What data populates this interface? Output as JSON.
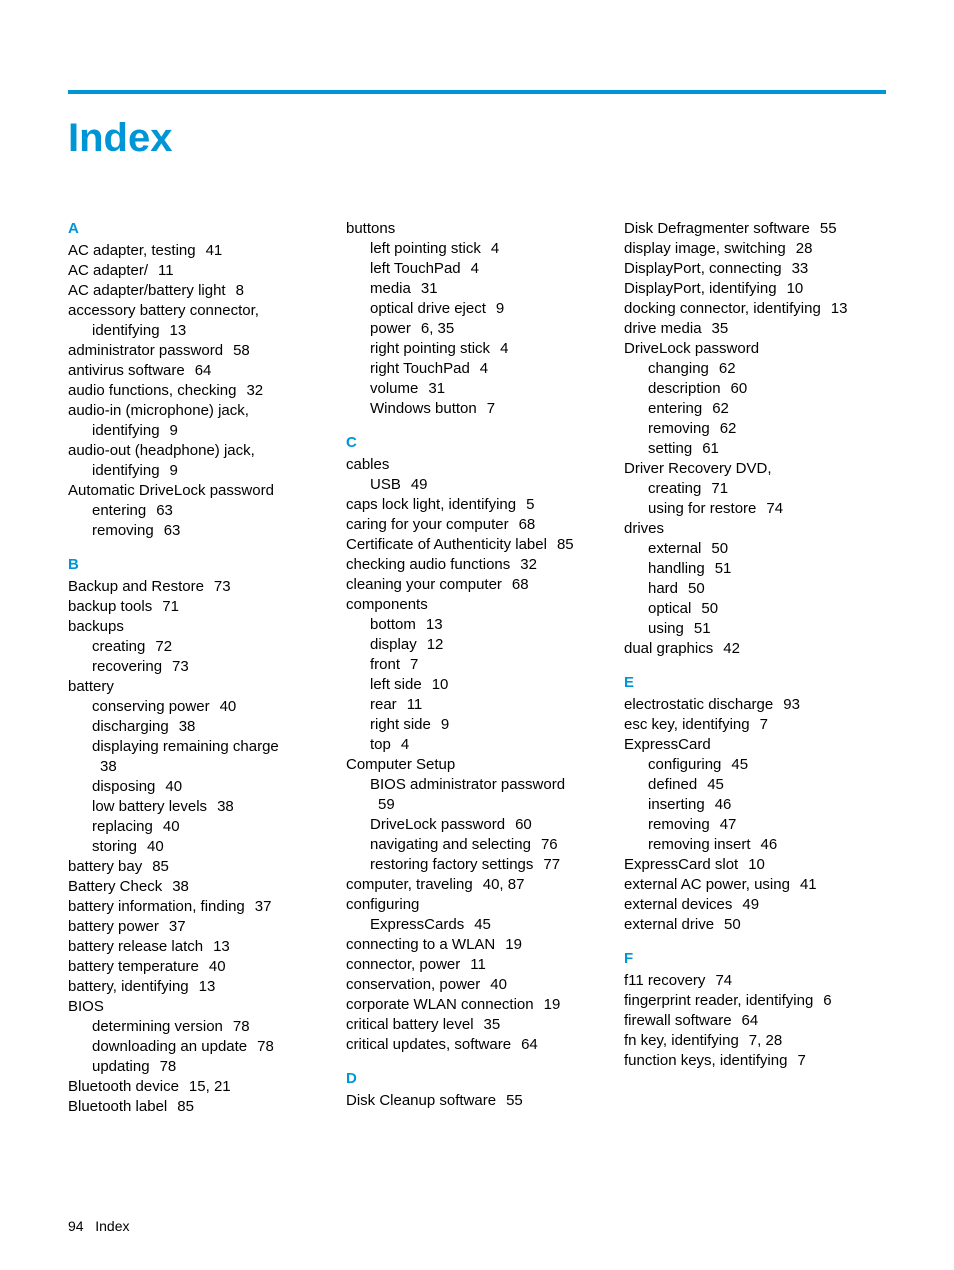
{
  "title": "Index",
  "footer_pagenum": "94",
  "footer_label": "Index",
  "accent_color": "#0096d6",
  "columns": 3,
  "entries": [
    [
      {
        "type": "letter",
        "text": "A",
        "first": true
      },
      {
        "type": "item",
        "text": "AC adapter, testing",
        "page": "41"
      },
      {
        "type": "item",
        "text": "AC adapter/",
        "page": "11"
      },
      {
        "type": "item",
        "text": "AC adapter/battery light",
        "page": "8"
      },
      {
        "type": "item",
        "text": "accessory battery connector,"
      },
      {
        "type": "item",
        "indent": 1,
        "text": "identifying",
        "page": "13",
        "tight": true
      },
      {
        "type": "item",
        "text": "administrator password",
        "page": "58"
      },
      {
        "type": "item",
        "text": "antivirus software",
        "page": "64"
      },
      {
        "type": "item",
        "text": "audio functions, checking",
        "page": "32"
      },
      {
        "type": "item",
        "text": "audio-in (microphone) jack,"
      },
      {
        "type": "item",
        "indent": 1,
        "text": "identifying",
        "page": "9",
        "tight": true
      },
      {
        "type": "item",
        "text": "audio-out (headphone) jack,"
      },
      {
        "type": "item",
        "indent": 1,
        "text": "identifying",
        "page": "9",
        "tight": true
      },
      {
        "type": "item",
        "text": "Automatic DriveLock password"
      },
      {
        "type": "item",
        "indent": 1,
        "text": "entering",
        "page": "63"
      },
      {
        "type": "item",
        "indent": 1,
        "text": "removing",
        "page": "63"
      },
      {
        "type": "letter",
        "text": "B"
      },
      {
        "type": "item",
        "text": "Backup and Restore",
        "page": "73"
      },
      {
        "type": "item",
        "text": "backup tools",
        "page": "71"
      },
      {
        "type": "item",
        "text": "backups"
      },
      {
        "type": "item",
        "indent": 1,
        "text": "creating",
        "page": "72"
      },
      {
        "type": "item",
        "indent": 1,
        "text": "recovering",
        "page": "73"
      },
      {
        "type": "item",
        "text": "battery"
      },
      {
        "type": "item",
        "indent": 1,
        "text": "conserving power",
        "page": "40"
      },
      {
        "type": "item",
        "indent": 1,
        "text": "discharging",
        "page": "38"
      },
      {
        "type": "item",
        "indent": 1,
        "text": "displaying remaining charge"
      },
      {
        "type": "item",
        "indent": 2,
        "text": "38",
        "tight": true
      },
      {
        "type": "item",
        "indent": 1,
        "text": "disposing",
        "page": "40"
      },
      {
        "type": "item",
        "indent": 1,
        "text": "low battery levels",
        "page": "38"
      },
      {
        "type": "item",
        "indent": 1,
        "text": "replacing",
        "page": "40"
      },
      {
        "type": "item",
        "indent": 1,
        "text": "storing",
        "page": "40"
      },
      {
        "type": "item",
        "text": "battery bay",
        "page": "85"
      },
      {
        "type": "item",
        "text": "Battery Check",
        "page": "38"
      },
      {
        "type": "item",
        "text": "battery information, finding",
        "page": "37"
      },
      {
        "type": "item",
        "text": "battery power",
        "page": "37"
      },
      {
        "type": "item",
        "text": "battery release latch",
        "page": "13"
      },
      {
        "type": "item",
        "text": "battery temperature",
        "page": "40"
      },
      {
        "type": "item",
        "text": "battery, identifying",
        "page": "13"
      },
      {
        "type": "item",
        "text": "BIOS"
      },
      {
        "type": "item",
        "indent": 1,
        "text": "determining version",
        "page": "78"
      },
      {
        "type": "item",
        "indent": 1,
        "text": "downloading an update",
        "page": "78"
      },
      {
        "type": "item",
        "indent": 1,
        "text": "updating",
        "page": "78"
      },
      {
        "type": "item",
        "text": "Bluetooth device",
        "page": "15, 21"
      },
      {
        "type": "item",
        "text": "Bluetooth label",
        "page": "85"
      }
    ],
    [
      {
        "type": "item",
        "text": "buttons"
      },
      {
        "type": "item",
        "indent": 1,
        "text": "left pointing stick",
        "page": "4"
      },
      {
        "type": "item",
        "indent": 1,
        "text": "left TouchPad",
        "page": "4"
      },
      {
        "type": "item",
        "indent": 1,
        "text": "media",
        "page": "31"
      },
      {
        "type": "item",
        "indent": 1,
        "text": "optical drive eject",
        "page": "9"
      },
      {
        "type": "item",
        "indent": 1,
        "text": "power",
        "page": "6, 35"
      },
      {
        "type": "item",
        "indent": 1,
        "text": "right pointing stick",
        "page": "4"
      },
      {
        "type": "item",
        "indent": 1,
        "text": "right TouchPad",
        "page": "4"
      },
      {
        "type": "item",
        "indent": 1,
        "text": "volume",
        "page": "31"
      },
      {
        "type": "item",
        "indent": 1,
        "text": "Windows button",
        "page": "7"
      },
      {
        "type": "letter",
        "text": "C"
      },
      {
        "type": "item",
        "text": "cables"
      },
      {
        "type": "item",
        "indent": 1,
        "text": "USB",
        "page": "49"
      },
      {
        "type": "item",
        "text": "caps lock light, identifying",
        "page": "5"
      },
      {
        "type": "item",
        "text": "caring for your computer",
        "page": "68"
      },
      {
        "type": "item",
        "text": "Certificate of Authenticity label",
        "page": "85"
      },
      {
        "type": "item",
        "text": "checking audio functions",
        "page": "32"
      },
      {
        "type": "item",
        "text": "cleaning your computer",
        "page": "68"
      },
      {
        "type": "item",
        "text": "components"
      },
      {
        "type": "item",
        "indent": 1,
        "text": "bottom",
        "page": "13"
      },
      {
        "type": "item",
        "indent": 1,
        "text": "display",
        "page": "12"
      },
      {
        "type": "item",
        "indent": 1,
        "text": "front",
        "page": "7"
      },
      {
        "type": "item",
        "indent": 1,
        "text": "left side",
        "page": "10"
      },
      {
        "type": "item",
        "indent": 1,
        "text": "rear",
        "page": "11"
      },
      {
        "type": "item",
        "indent": 1,
        "text": "right side",
        "page": "9"
      },
      {
        "type": "item",
        "indent": 1,
        "text": "top",
        "page": "4"
      },
      {
        "type": "item",
        "text": "Computer Setup"
      },
      {
        "type": "item",
        "indent": 1,
        "text": "BIOS administrator password"
      },
      {
        "type": "item",
        "indent": 2,
        "text": "59",
        "tight": true
      },
      {
        "type": "item",
        "indent": 1,
        "text": "DriveLock password",
        "page": "60"
      },
      {
        "type": "item",
        "indent": 1,
        "text": "navigating and selecting",
        "page": "76"
      },
      {
        "type": "item",
        "indent": 1,
        "text": "restoring factory settings",
        "page": "77"
      },
      {
        "type": "item",
        "text": "computer, traveling",
        "page": "40, 87"
      },
      {
        "type": "item",
        "text": "configuring"
      },
      {
        "type": "item",
        "indent": 1,
        "text": "ExpressCards",
        "page": "45"
      },
      {
        "type": "item",
        "text": "connecting to a WLAN",
        "page": "19"
      },
      {
        "type": "item",
        "text": "connector, power",
        "page": "11"
      },
      {
        "type": "item",
        "text": "conservation, power",
        "page": "40"
      },
      {
        "type": "item",
        "text": "corporate WLAN connection",
        "page": "19"
      },
      {
        "type": "item",
        "text": "critical battery level",
        "page": "35"
      },
      {
        "type": "item",
        "text": "critical updates, software",
        "page": "64"
      },
      {
        "type": "letter",
        "text": "D"
      },
      {
        "type": "item",
        "text": "Disk Cleanup software",
        "page": "55"
      }
    ],
    [
      {
        "type": "item",
        "text": "Disk Defragmenter software",
        "page": "55"
      },
      {
        "type": "item",
        "text": "display image, switching",
        "page": "28"
      },
      {
        "type": "item",
        "text": "DisplayPort, connecting",
        "page": "33"
      },
      {
        "type": "item",
        "text": "DisplayPort, identifying",
        "page": "10"
      },
      {
        "type": "item",
        "text": "docking connector, identifying",
        "page": "13"
      },
      {
        "type": "item",
        "text": "drive media",
        "page": "35"
      },
      {
        "type": "item",
        "text": "DriveLock password"
      },
      {
        "type": "item",
        "indent": 1,
        "text": "changing",
        "page": "62"
      },
      {
        "type": "item",
        "indent": 1,
        "text": "description",
        "page": "60"
      },
      {
        "type": "item",
        "indent": 1,
        "text": "entering",
        "page": "62"
      },
      {
        "type": "item",
        "indent": 1,
        "text": "removing",
        "page": "62"
      },
      {
        "type": "item",
        "indent": 1,
        "text": "setting",
        "page": "61"
      },
      {
        "type": "item",
        "text": "Driver Recovery DVD,"
      },
      {
        "type": "item",
        "indent": 1,
        "text": "creating",
        "page": "71"
      },
      {
        "type": "item",
        "indent": 1,
        "text": "using for restore",
        "page": "74"
      },
      {
        "type": "item",
        "text": "drives"
      },
      {
        "type": "item",
        "indent": 1,
        "text": "external",
        "page": "50"
      },
      {
        "type": "item",
        "indent": 1,
        "text": "handling",
        "page": "51"
      },
      {
        "type": "item",
        "indent": 1,
        "text": "hard",
        "page": "50"
      },
      {
        "type": "item",
        "indent": 1,
        "text": "optical",
        "page": "50"
      },
      {
        "type": "item",
        "indent": 1,
        "text": "using",
        "page": "51"
      },
      {
        "type": "item",
        "text": "dual graphics",
        "page": "42"
      },
      {
        "type": "letter",
        "text": "E"
      },
      {
        "type": "item",
        "text": "electrostatic discharge",
        "page": "93"
      },
      {
        "type": "item",
        "text": "esc key, identifying",
        "page": "7"
      },
      {
        "type": "item",
        "text": "ExpressCard"
      },
      {
        "type": "item",
        "indent": 1,
        "text": "configuring",
        "page": "45"
      },
      {
        "type": "item",
        "indent": 1,
        "text": "defined",
        "page": "45"
      },
      {
        "type": "item",
        "indent": 1,
        "text": "inserting",
        "page": "46"
      },
      {
        "type": "item",
        "indent": 1,
        "text": "removing",
        "page": "47"
      },
      {
        "type": "item",
        "indent": 1,
        "text": "removing insert",
        "page": "46"
      },
      {
        "type": "item",
        "text": "ExpressCard slot",
        "page": "10"
      },
      {
        "type": "item",
        "text": "external AC power, using",
        "page": "41"
      },
      {
        "type": "item",
        "text": "external devices",
        "page": "49"
      },
      {
        "type": "item",
        "text": "external drive",
        "page": "50"
      },
      {
        "type": "letter",
        "text": "F"
      },
      {
        "type": "item",
        "text": "f11 recovery",
        "page": "74"
      },
      {
        "type": "item",
        "text": "fingerprint reader, identifying",
        "page": "6"
      },
      {
        "type": "item",
        "text": "firewall software",
        "page": "64"
      },
      {
        "type": "item",
        "text": "fn key, identifying",
        "page": "7, 28"
      },
      {
        "type": "item",
        "text": "function keys, identifying",
        "page": "7"
      }
    ]
  ]
}
